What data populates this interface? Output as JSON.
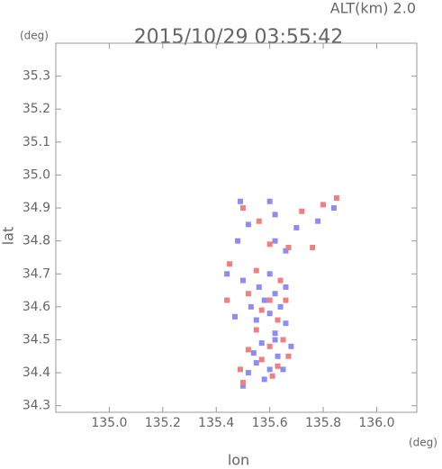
{
  "chart_data": {
    "type": "scatter",
    "title": "2015/10/29 03:55:42",
    "subtitle": "ALT(km) 2.0",
    "y_unit": "(deg)",
    "x_unit": "(deg)",
    "ylabel": "lat",
    "xlabel": "lon",
    "xlim": [
      134.8,
      136.15
    ],
    "ylim": [
      34.28,
      35.4
    ],
    "xticks": [
      {
        "value": 135,
        "label": "135.0"
      },
      135.2,
      135.4,
      135.6,
      135.8,
      {
        "value": 136,
        "label": "136.0"
      }
    ],
    "yticks": [
      34.3,
      34.4,
      34.5,
      34.6,
      34.7,
      34.8,
      34.9,
      {
        "value": 35,
        "label": "35.0"
      },
      35.1,
      35.2,
      35.3
    ],
    "series": [
      {
        "color": "#8c8cf2",
        "x": [
          135.49,
          135.6,
          135.62,
          135.52,
          135.48,
          135.62,
          135.66,
          135.7,
          135.78,
          135.84,
          135.44,
          135.5,
          135.56,
          135.62,
          135.58,
          135.64,
          135.6,
          135.55,
          135.66,
          135.62,
          135.57,
          135.68,
          135.63,
          135.55,
          135.6,
          135.52,
          135.65,
          135.58,
          135.5,
          135.47,
          135.53,
          135.6,
          135.66,
          135.62,
          135.54
        ],
        "values": [
          34.92,
          34.92,
          34.88,
          34.85,
          34.8,
          34.8,
          34.77,
          34.84,
          34.86,
          34.9,
          34.7,
          34.68,
          34.66,
          34.64,
          34.62,
          34.6,
          34.58,
          34.56,
          34.55,
          34.52,
          34.49,
          34.48,
          34.45,
          34.43,
          34.41,
          34.4,
          34.41,
          34.38,
          34.36,
          34.57,
          34.6,
          34.7,
          34.66,
          34.5,
          34.46
        ]
      },
      {
        "color": "#f08080",
        "x": [
          135.5,
          135.56,
          135.72,
          135.8,
          135.85,
          135.6,
          135.67,
          135.76,
          135.45,
          135.55,
          135.64,
          135.52,
          135.6,
          135.57,
          135.66,
          135.63,
          135.55,
          135.65,
          135.6,
          135.52,
          135.67,
          135.57,
          135.63,
          135.49,
          135.5,
          135.44,
          135.61
        ],
        "values": [
          34.9,
          34.86,
          34.89,
          34.91,
          34.93,
          34.79,
          34.78,
          34.78,
          34.73,
          34.71,
          34.68,
          34.64,
          34.62,
          34.59,
          34.62,
          34.56,
          34.53,
          34.5,
          34.48,
          34.47,
          34.45,
          34.44,
          34.42,
          34.41,
          34.37,
          34.62,
          34.39
        ]
      }
    ]
  }
}
